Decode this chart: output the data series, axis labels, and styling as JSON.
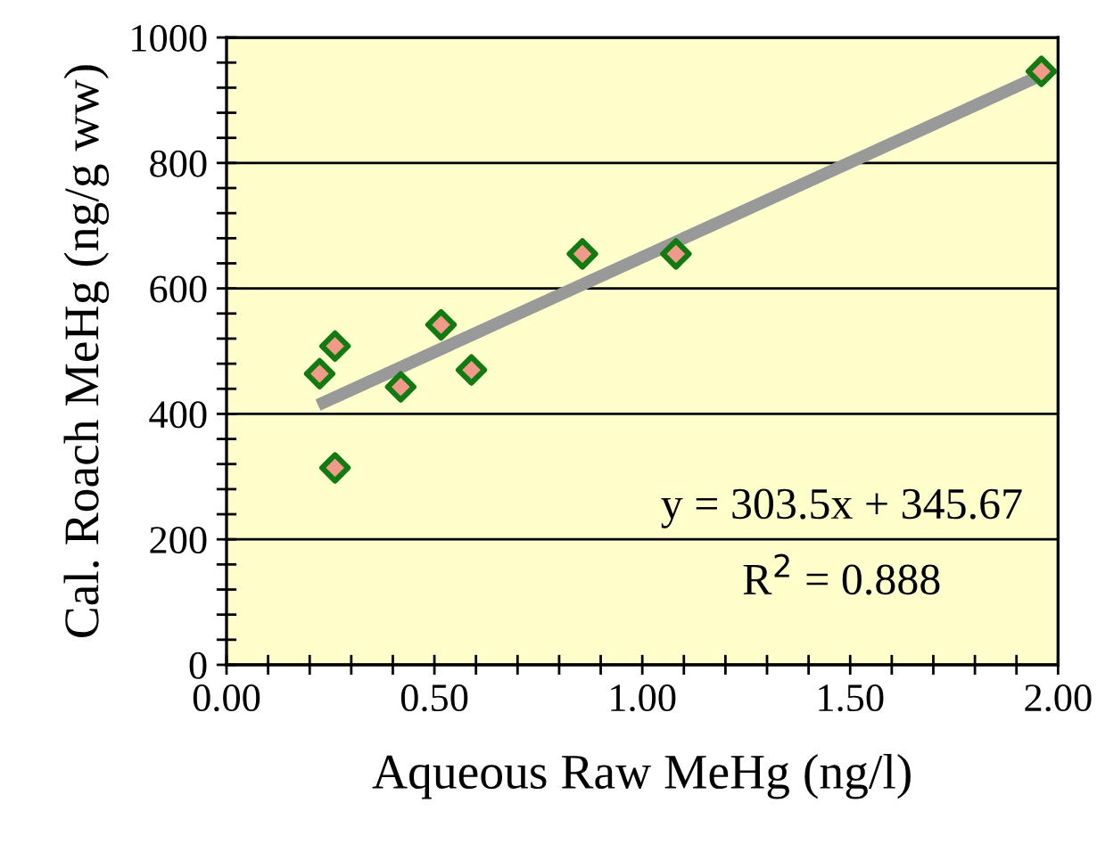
{
  "chart_data": {
    "type": "scatter",
    "xlabel": "Aqueous Raw MeHg (ng/l)",
    "ylabel": "Cal. Roach MeHg (ng/g ww)",
    "series": [
      {
        "color": "#117a11",
        "marker": "diamond",
        "x": [
          0.224,
          0.261,
          0.261,
          0.419,
          0.516,
          0.589,
          0.856,
          1.081,
          1.96
        ],
        "values": [
          464,
          508,
          314,
          443,
          542,
          470,
          655,
          655,
          946
        ]
      },
      {
        "type": "line",
        "color": "#999999",
        "x": [
          0.22,
          1.96
        ],
        "values": [
          414,
          940
        ]
      }
    ],
    "annotations": [
      "y = 303.5x + 345.67",
      "R$^{2}$ = 0.888"
    ],
    "xlim": [
      0,
      2
    ],
    "ylim": [
      0,
      1000
    ],
    "xticks": [
      {
        "value": 0,
        "label": "0.00"
      },
      {
        "value": 0.1,
        "label": null
      },
      {
        "value": 0.2,
        "label": null
      },
      {
        "value": 0.3,
        "label": null
      },
      {
        "value": 0.4,
        "label": null
      },
      {
        "value": 0.5,
        "label": "0.50"
      },
      {
        "value": 0.6,
        "label": null
      },
      {
        "value": 0.7,
        "label": null
      },
      {
        "value": 0.8,
        "label": null
      },
      {
        "value": 0.9,
        "label": null
      },
      {
        "value": 1,
        "label": "1.00"
      },
      {
        "value": 1.1,
        "label": null
      },
      {
        "value": 1.2,
        "label": null
      },
      {
        "value": 1.3,
        "label": null
      },
      {
        "value": 1.4,
        "label": null
      },
      {
        "value": 1.5,
        "label": "1.50"
      },
      {
        "value": 1.6,
        "label": null
      },
      {
        "value": 1.7,
        "label": null
      },
      {
        "value": 1.8,
        "label": null
      },
      {
        "value": 1.9,
        "label": null
      },
      {
        "value": 2,
        "label": "2.00"
      }
    ],
    "yticks": [
      0,
      {
        "value": 40,
        "label": null
      },
      {
        "value": 80,
        "label": null
      },
      {
        "value": 120,
        "label": null
      },
      {
        "value": 160,
        "label": null
      },
      200,
      {
        "value": 240,
        "label": null
      },
      {
        "value": 280,
        "label": null
      },
      {
        "value": 320,
        "label": null
      },
      {
        "value": 360,
        "label": null
      },
      400,
      {
        "value": 440,
        "label": null
      },
      {
        "value": 480,
        "label": null
      },
      {
        "value": 520,
        "label": null
      },
      {
        "value": 560,
        "label": null
      },
      600,
      {
        "value": 640,
        "label": null
      },
      {
        "value": 680,
        "label": null
      },
      {
        "value": 720,
        "label": null
      },
      {
        "value": 760,
        "label": null
      },
      800,
      {
        "value": 840,
        "label": null
      },
      {
        "value": 880,
        "label": null
      },
      {
        "value": 920,
        "label": null
      },
      {
        "value": 960,
        "label": null
      },
      1000
    ],
    "grid": "y"
  }
}
